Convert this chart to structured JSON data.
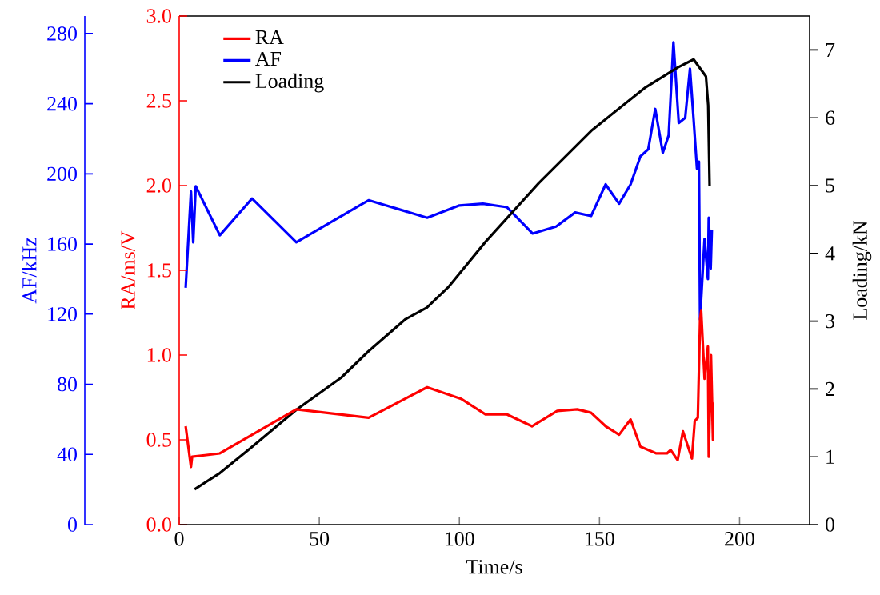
{
  "chart_data": {
    "type": "line",
    "xlabel": "Time/s",
    "ylabel": "RA/ms/V",
    "y2label": "Loading/kN",
    "y3label": "AF/kHz",
    "xlim": [
      0,
      225
    ],
    "xticks": [
      0,
      50,
      100,
      150,
      200
    ],
    "ylim": [
      0,
      3
    ],
    "yticks": [
      {
        "value": 0,
        "label": "0.0"
      },
      {
        "value": 0.5,
        "label": "0.5"
      },
      {
        "value": 1,
        "label": "1.0"
      },
      {
        "value": 1.5,
        "label": "1.5"
      },
      {
        "value": 2,
        "label": "2.0"
      },
      {
        "value": 2.5,
        "label": "2.5"
      },
      {
        "value": 3,
        "label": "3.0"
      }
    ],
    "y2lim": [
      0,
      7.5
    ],
    "y2ticks": [
      0,
      1,
      2,
      3,
      4,
      5,
      6,
      7
    ],
    "y3lim": [
      0,
      290
    ],
    "y3ticks": [
      0,
      40,
      80,
      120,
      160,
      200,
      240,
      280
    ],
    "legend": "top left",
    "series": [
      {
        "name": "RA",
        "color": "#ff0000",
        "x": [
          2.3,
          4.2,
          4.6,
          14.5,
          41.8,
          67.6,
          88.5,
          100.8,
          109.3,
          117,
          125.9,
          134.9,
          142.1,
          147,
          152.2,
          157,
          161.1,
          164.6,
          170.3,
          174.1,
          175.4,
          177.9,
          179.8,
          183,
          184,
          185.1,
          185.9,
          186.3,
          187.5,
          188.7,
          189,
          189.8,
          190.5,
          190.5
        ],
        "values": [
          0.58,
          0.34,
          0.4,
          0.42,
          0.68,
          0.63,
          0.81,
          0.74,
          0.65,
          0.65,
          0.58,
          0.67,
          0.68,
          0.66,
          0.58,
          0.53,
          0.62,
          0.46,
          0.42,
          0.42,
          0.44,
          0.38,
          0.55,
          0.39,
          0.61,
          0.63,
          1.21,
          1.26,
          0.86,
          1.05,
          0.4,
          1.0,
          0.5,
          0.72
        ]
      },
      {
        "name": "AF",
        "color": "#0000ff",
        "axis": "y3",
        "x": [
          2.3,
          4.2,
          5,
          5.9,
          14.5,
          26,
          41.8,
          67.6,
          88.5,
          100,
          108.4,
          117,
          126.1,
          134.5,
          141.3,
          147,
          152.2,
          157,
          161.1,
          164.6,
          167.4,
          169.9,
          172.6,
          174.7,
          176.4,
          178.3,
          180.6,
          182.3,
          183.6,
          184.8,
          185.5,
          185.9,
          186.3,
          187.5,
          188.7,
          189,
          189.7,
          190.1
        ],
        "values": [
          135,
          190,
          161,
          193,
          165,
          186,
          161,
          185,
          175,
          182,
          183,
          181,
          166,
          170,
          178,
          176,
          194,
          183,
          194,
          210,
          214,
          237,
          212,
          222,
          275,
          229,
          232,
          260,
          231,
          203,
          207,
          117,
          null,
          163,
          140,
          175,
          146,
          168
        ]
      },
      {
        "name": "Loading",
        "color": "#000000",
        "axis": "y2",
        "x": [
          5.5,
          14.5,
          25.5,
          41.7,
          57.9,
          67.4,
          80.8,
          88.4,
          96,
          109.3,
          128.4,
          147.4,
          166.5,
          177.9,
          183.6,
          188,
          188.8,
          189.3
        ],
        "values": [
          0.52,
          0.76,
          1.13,
          1.69,
          2.17,
          2.55,
          3.03,
          3.2,
          3.5,
          4.17,
          5.04,
          5.82,
          6.45,
          6.74,
          6.86,
          6.61,
          6.18,
          5.0
        ]
      }
    ]
  }
}
